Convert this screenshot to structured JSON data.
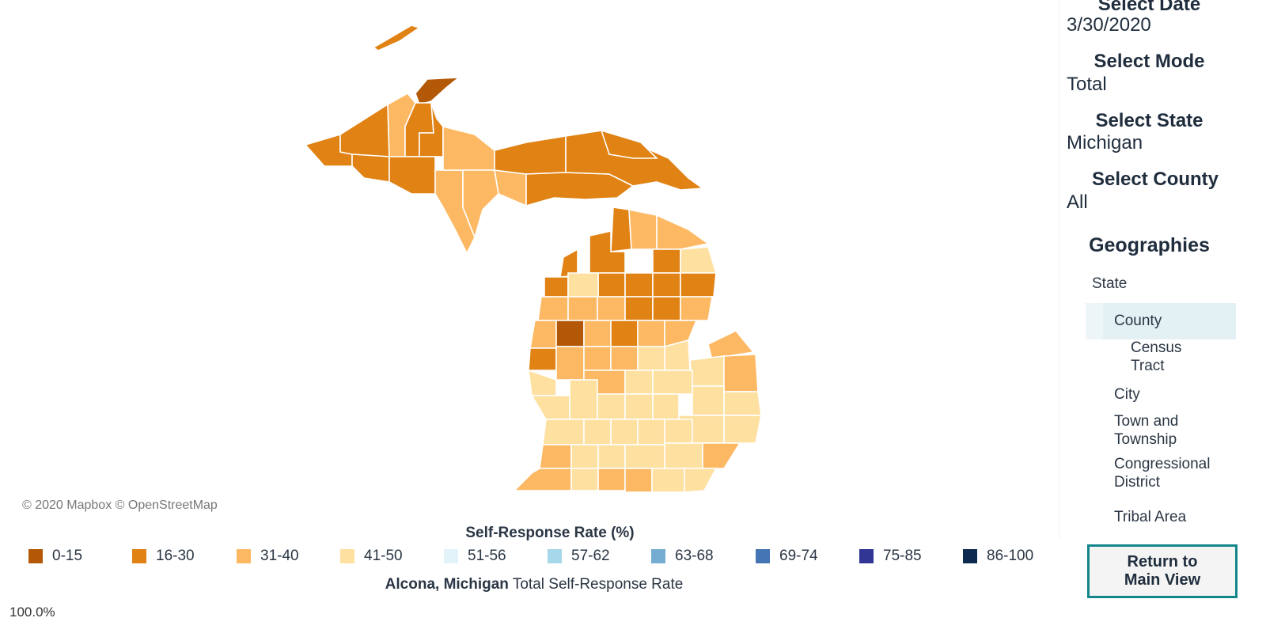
{
  "map": {
    "attribution": "© 2020 Mapbox © OpenStreetMap",
    "legend_title": "Self-Response Rate (%)",
    "legend": [
      {
        "label": "0-15",
        "color": "#b35806"
      },
      {
        "label": "16-30",
        "color": "#e08214"
      },
      {
        "label": "31-40",
        "color": "#fdb863"
      },
      {
        "label": "41-50",
        "color": "#fee0a0"
      },
      {
        "label": "51-56",
        "color": "#e3f3fa"
      },
      {
        "label": "57-62",
        "color": "#a6d8ea"
      },
      {
        "label": "63-68",
        "color": "#74add1"
      },
      {
        "label": "69-74",
        "color": "#4575b4"
      },
      {
        "label": "75-85",
        "color": "#313695"
      },
      {
        "label": "86-100",
        "color": "#0d2a4f"
      }
    ],
    "caption_place": "Alcona, Michigan",
    "caption_rest": " Total Self-Response Rate",
    "percent": "100.0%"
  },
  "controls": {
    "date_label": "Select Date",
    "date_value": "3/30/2020",
    "mode_label": "Select Mode",
    "mode_value": "Total",
    "state_label": "Select State",
    "state_value": "Michigan",
    "county_label": "Select County",
    "county_value": "All"
  },
  "geographies": {
    "title": "Geographies",
    "items": {
      "state": "State",
      "county": "County",
      "census_tract_1": "Census",
      "census_tract_2": "Tract",
      "city": "City",
      "town_1": "Town and",
      "town_2": "Township",
      "congress_1": "Congressional",
      "congress_2": "District",
      "tribal": "Tribal Area"
    },
    "selected": "County"
  },
  "return_button": {
    "line1": "Return to",
    "line2": "Main View"
  }
}
